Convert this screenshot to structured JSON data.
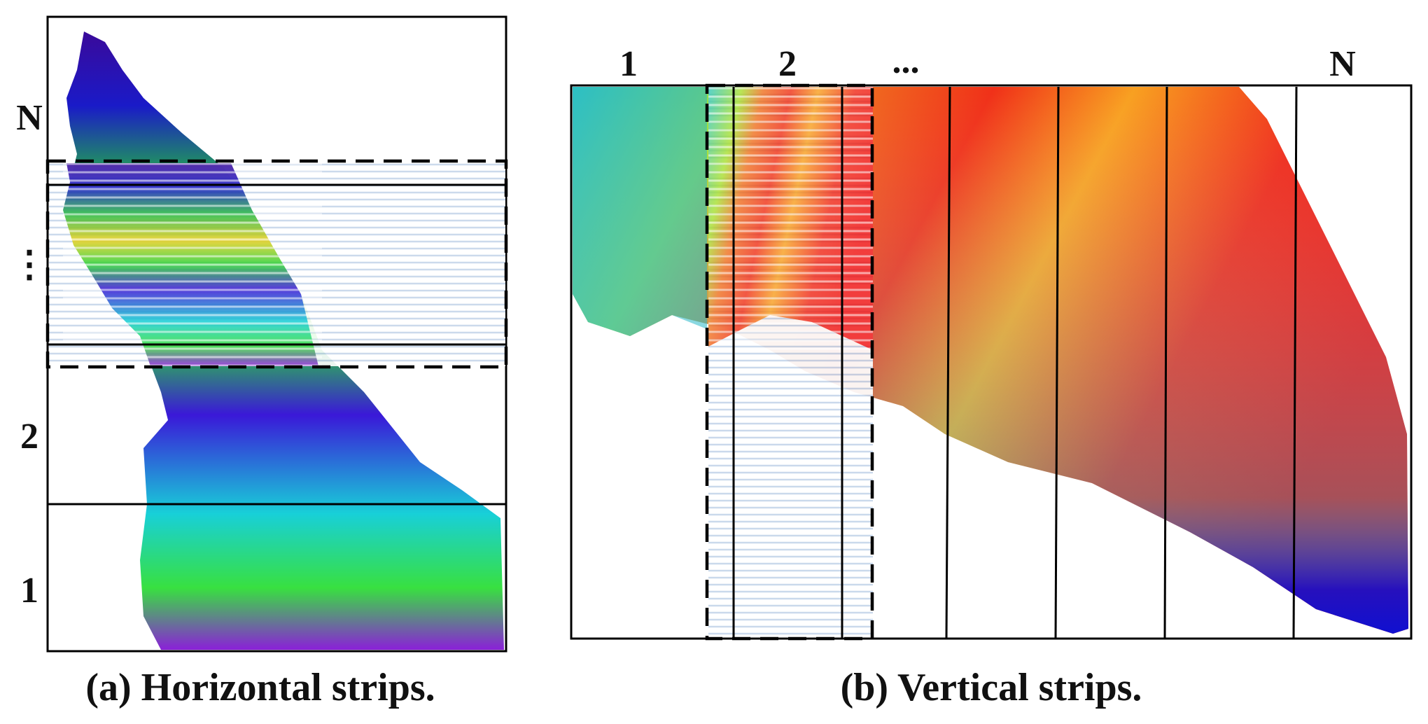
{
  "panel_a": {
    "caption": "(a) Horizontal strips.",
    "strip_labels": {
      "top": "N",
      "middle": "⋮",
      "second": "2",
      "bottom": "1"
    }
  },
  "panel_b": {
    "caption": "(b) Vertical strips.",
    "strip_labels": {
      "first": "1",
      "second": "2",
      "ellipsis": "...",
      "last": "N"
    }
  },
  "colors": {
    "outline": "#000000",
    "hatch": "#9fb8d8",
    "terrain_low": "#2b0fd0",
    "terrain_mid": "#22c93a",
    "terrain_high": "#f01818"
  }
}
